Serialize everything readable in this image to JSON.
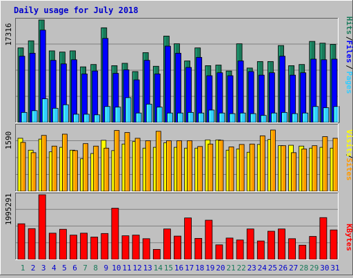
{
  "chart_data": [
    {
      "type": "bar",
      "title": "Daily usage for July 2018",
      "ymax_label": "17316",
      "ylabels": [
        "Pages",
        "Files",
        "Hits"
      ],
      "categories": [
        "1",
        "2",
        "3",
        "4",
        "5",
        "6",
        "7",
        "8",
        "9",
        "10",
        "11",
        "12",
        "13",
        "14",
        "15",
        "16",
        "17",
        "18",
        "19",
        "20",
        "21",
        "22",
        "23",
        "24",
        "25",
        "26",
        "27",
        "28",
        "29",
        "30",
        "31"
      ],
      "ylim": [
        0,
        17316
      ],
      "series": [
        {
          "name": "Hits",
          "values": [
            12600,
            13800,
            17316,
            12100,
            11900,
            12100,
            9400,
            9800,
            16000,
            9600,
            10000,
            8600,
            11800,
            9500,
            14600,
            13300,
            10400,
            12600,
            9600,
            9700,
            8700,
            13300,
            9200,
            10300,
            10300,
            13000,
            9600,
            9800,
            13700,
            13400,
            13200
          ]
        },
        {
          "name": "Files",
          "values": [
            11200,
            11700,
            15600,
            10500,
            9900,
            10600,
            8200,
            8700,
            14200,
            8300,
            8900,
            7200,
            10500,
            8200,
            12900,
            11700,
            9300,
            11000,
            7900,
            8400,
            7900,
            10400,
            8600,
            8000,
            8400,
            11200,
            8000,
            8400,
            10700,
            10600,
            10700
          ]
        },
        {
          "name": "Pages",
          "values": [
            1700,
            2000,
            4000,
            2400,
            3000,
            1400,
            1400,
            1300,
            2700,
            2600,
            4200,
            1600,
            3100,
            2600,
            1600,
            1600,
            1700,
            1600,
            2100,
            1600,
            1500,
            1600,
            1500,
            1200,
            1600,
            1700,
            1500,
            1600,
            2700,
            2500,
            2700
          ]
        }
      ],
      "colors": {
        "Hits": "#1a7a5a",
        "Files": "#0000ff",
        "Pages": "#33ccff"
      },
      "grid": true
    },
    {
      "type": "bar",
      "ymax_label": "1590",
      "ylabels": [
        "Sites",
        "Visits"
      ],
      "categories": [
        "1",
        "2",
        "3",
        "4",
        "5",
        "6",
        "7",
        "8",
        "9",
        "10",
        "11",
        "12",
        "13",
        "14",
        "15",
        "16",
        "17",
        "18",
        "19",
        "20",
        "21",
        "22",
        "23",
        "24",
        "25",
        "26",
        "27",
        "28",
        "29",
        "30",
        "31"
      ],
      "ylim": [
        0,
        1590
      ],
      "series": [
        {
          "name": "Visits",
          "values": [
            1290,
            1000,
            1270,
            960,
            1070,
            1000,
            790,
            920,
            1240,
            990,
            1150,
            1210,
            1050,
            1070,
            1180,
            1070,
            1050,
            1050,
            1250,
            1250,
            1000,
            1030,
            950,
            1140,
            1260,
            1110,
            1120,
            1100,
            1050,
            1070,
            1050
          ]
        },
        {
          "name": "Sites",
          "values": [
            1190,
            940,
            1360,
            1100,
            1390,
            990,
            1160,
            1100,
            1050,
            1480,
            1430,
            1290,
            1230,
            1460,
            1230,
            1230,
            1230,
            1090,
            1150,
            1240,
            1080,
            1140,
            1150,
            1350,
            1490,
            1110,
            940,
            1030,
            1110,
            1330,
            1290
          ]
        }
      ],
      "colors": {
        "Visits": "#ffff00",
        "Sites": "#ff9900"
      },
      "grid": true
    },
    {
      "type": "bar",
      "ymax_label": "1995291",
      "ylabels": [
        "KBytes"
      ],
      "categories": [
        "1",
        "2",
        "3",
        "4",
        "5",
        "6",
        "7",
        "8",
        "9",
        "10",
        "11",
        "12",
        "13",
        "14",
        "15",
        "16",
        "17",
        "18",
        "19",
        "20",
        "21",
        "22",
        "23",
        "24",
        "25",
        "26",
        "27",
        "28",
        "29",
        "30",
        "31"
      ],
      "ylim": [
        0,
        1995291
      ],
      "series": [
        {
          "name": "KBytes",
          "values": [
            1100000,
            950000,
            1995291,
            810000,
            930000,
            750000,
            810000,
            690000,
            800000,
            1580000,
            730000,
            750000,
            640000,
            310000,
            940000,
            720000,
            1280000,
            650000,
            1210000,
            450000,
            660000,
            600000,
            940000,
            570000,
            870000,
            940000,
            640000,
            440000,
            710000,
            1290000,
            910000
          ]
        }
      ],
      "colors": {
        "KBytes": "#ff0000"
      },
      "grid": true
    }
  ],
  "xaxis": {
    "labels": [
      "1",
      "2",
      "3",
      "4",
      "5",
      "6",
      "7",
      "8",
      "9",
      "10",
      "11",
      "12",
      "13",
      "14",
      "15",
      "16",
      "17",
      "18",
      "19",
      "20",
      "21",
      "22",
      "23",
      "24",
      "25",
      "26",
      "27",
      "28",
      "29",
      "30",
      "31"
    ],
    "weekend": [
      1,
      7,
      8,
      14,
      15,
      21,
      22,
      28,
      29
    ],
    "weekday_color": "#0000cc",
    "weekend_color": "#1a7a5a"
  }
}
